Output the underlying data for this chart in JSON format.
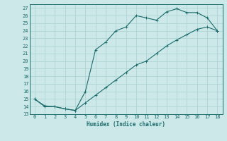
{
  "xlabel": "Humidex (Indice chaleur)",
  "ylabel": "",
  "xlim": [
    -0.5,
    18.5
  ],
  "ylim": [
    13,
    27.5
  ],
  "yticks": [
    13,
    14,
    15,
    16,
    17,
    18,
    19,
    20,
    21,
    22,
    23,
    24,
    25,
    26,
    27
  ],
  "xticks": [
    0,
    1,
    2,
    3,
    4,
    5,
    6,
    7,
    8,
    9,
    10,
    11,
    12,
    13,
    14,
    15,
    16,
    17,
    18
  ],
  "background_color": "#cde8e8",
  "line_color": "#1a6b6b",
  "grid_color": "#aed4d4",
  "line1_x": [
    0,
    1,
    2,
    3,
    4,
    5,
    6,
    7,
    8,
    9,
    10,
    11,
    12,
    13,
    14,
    15,
    16,
    17,
    18
  ],
  "line1_y": [
    15,
    14,
    14,
    13.7,
    13.5,
    16,
    21.5,
    22.5,
    24,
    24.5,
    26,
    25.7,
    25.4,
    26.5,
    26.9,
    26.4,
    26.4,
    25.7,
    24
  ],
  "line2_x": [
    0,
    1,
    2,
    3,
    4,
    5,
    6,
    7,
    8,
    9,
    10,
    11,
    12,
    13,
    14,
    15,
    16,
    17,
    18
  ],
  "line2_y": [
    15,
    14.1,
    14.0,
    13.7,
    13.5,
    14.5,
    15.5,
    16.5,
    17.5,
    18.5,
    19.5,
    20.0,
    21.0,
    22.0,
    22.8,
    23.5,
    24.2,
    24.5,
    24
  ],
  "marker": "+"
}
